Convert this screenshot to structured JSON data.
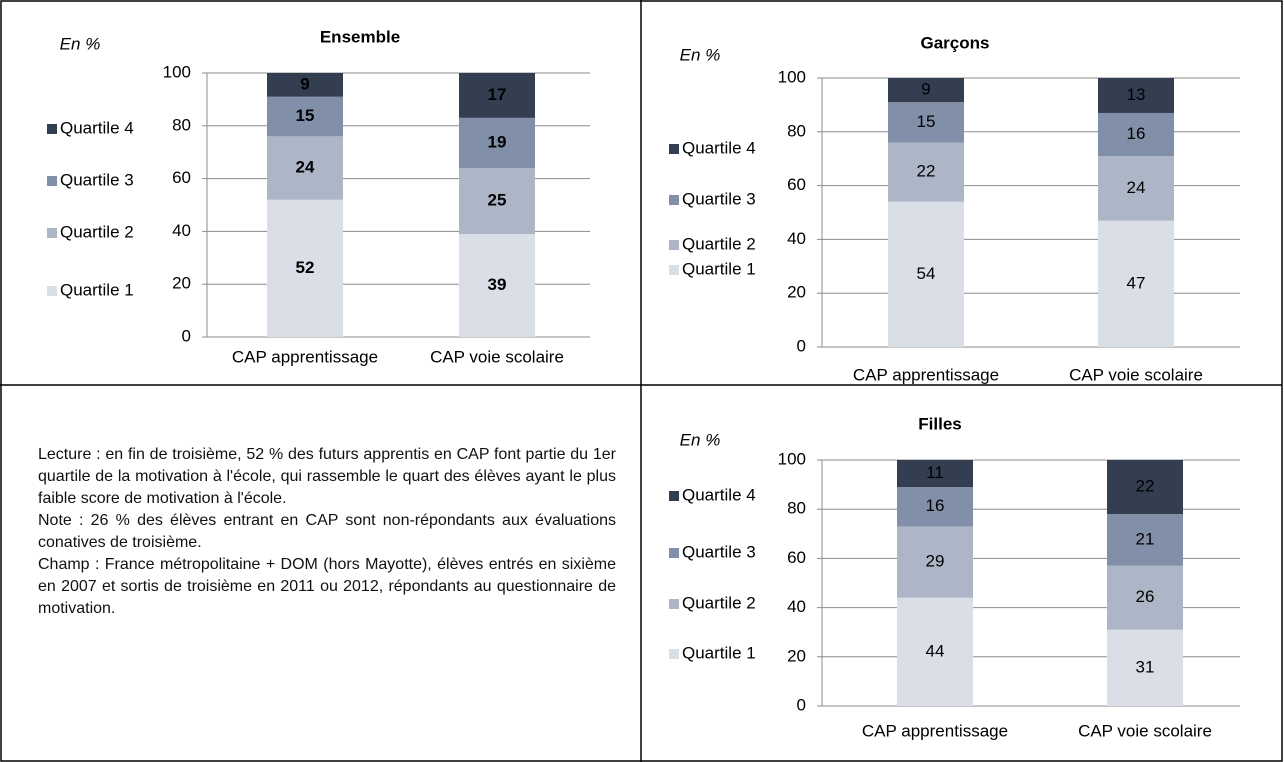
{
  "chart_data": [
    {
      "type": "bar",
      "stacked": true,
      "title": "Ensemble",
      "unit_label": "En %",
      "bold_labels": true,
      "categories": [
        "CAP apprentissage",
        "CAP voie scolaire"
      ],
      "series": [
        {
          "name": "Quartile 1",
          "color": "#d9dee7",
          "values": [
            52,
            39
          ]
        },
        {
          "name": "Quartile 2",
          "color": "#adb6c7",
          "values": [
            24,
            25
          ]
        },
        {
          "name": "Quartile 3",
          "color": "#8190a8",
          "values": [
            15,
            19
          ]
        },
        {
          "name": "Quartile 4",
          "color": "#333f50",
          "values": [
            9,
            17
          ]
        }
      ],
      "ylim": [
        0,
        100
      ],
      "yticks": [
        0,
        20,
        40,
        60,
        80,
        100
      ],
      "grid": true,
      "legend": "left"
    },
    {
      "type": "bar",
      "stacked": true,
      "title": "Garçons",
      "unit_label": "En %",
      "bold_labels": false,
      "categories": [
        "CAP apprentissage",
        "CAP voie scolaire"
      ],
      "series": [
        {
          "name": "Quartile 1",
          "color": "#d9dee7",
          "values": [
            54,
            47
          ]
        },
        {
          "name": "Quartile 2",
          "color": "#adb6c7",
          "values": [
            22,
            24
          ]
        },
        {
          "name": "Quartile 3",
          "color": "#8190a8",
          "values": [
            15,
            16
          ]
        },
        {
          "name": "Quartile 4",
          "color": "#333f50",
          "values": [
            9,
            13
          ]
        }
      ],
      "ylim": [
        0,
        100
      ],
      "yticks": [
        0,
        20,
        40,
        60,
        80,
        100
      ],
      "grid": true,
      "legend": "left"
    },
    {
      "type": "bar",
      "stacked": true,
      "title": "Filles",
      "unit_label": "En %",
      "bold_labels": false,
      "categories": [
        "CAP apprentissage",
        "CAP voie scolaire"
      ],
      "series": [
        {
          "name": "Quartile 1",
          "color": "#d9dee7",
          "values": [
            44,
            31
          ]
        },
        {
          "name": "Quartile 2",
          "color": "#adb6c7",
          "values": [
            29,
            26
          ]
        },
        {
          "name": "Quartile 3",
          "color": "#8190a8",
          "values": [
            16,
            21
          ]
        },
        {
          "name": "Quartile 4",
          "color": "#333f50",
          "values": [
            11,
            22
          ]
        }
      ],
      "ylim": [
        0,
        100
      ],
      "yticks": [
        0,
        20,
        40,
        60,
        80,
        100
      ],
      "grid": true,
      "legend": "left"
    }
  ],
  "note": [
    "Lecture : en fin de troisième, 52 % des futurs apprentis en CAP font partie du 1er quartile de la motivation à l'école, qui rassemble le quart des élèves ayant le plus faible score de motivation à l'école.",
    "Note : 26 % des élèves entrant en CAP sont non-répondants aux évaluations conatives de troisième.",
    "Champ : France métropolitaine + DOM (hors Mayotte), élèves entrés en sixième en 2007 et sortis de troisième en 2011 ou 2012, répondants au questionnaire de motivation."
  ]
}
